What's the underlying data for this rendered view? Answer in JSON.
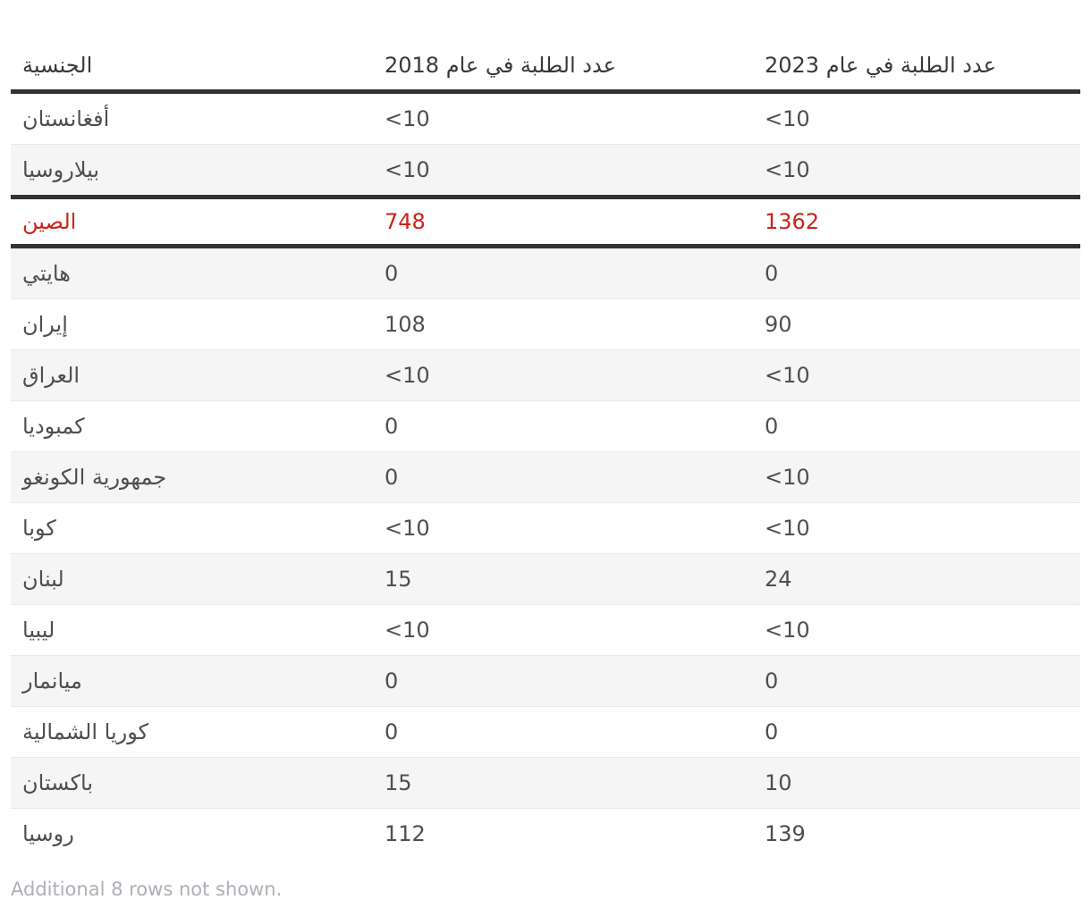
{
  "table": {
    "columns": [
      {
        "key": "nationality",
        "label": "الجنسية"
      },
      {
        "key": "y2018",
        "label": "عدد الطلبة في عام 2018"
      },
      {
        "key": "y2023",
        "label": "عدد الطلبة في عام 2023"
      }
    ],
    "rows": [
      {
        "nationality": "أفغانستان",
        "y2018": "<10",
        "y2023": "<10",
        "highlight": false
      },
      {
        "nationality": "بيلاروسيا",
        "y2018": "<10",
        "y2023": "<10",
        "highlight": false
      },
      {
        "nationality": "الصين",
        "y2018": "748",
        "y2023": "1362",
        "highlight": true
      },
      {
        "nationality": "هايتي",
        "y2018": "0",
        "y2023": "0",
        "highlight": false
      },
      {
        "nationality": "إيران",
        "y2018": "108",
        "y2023": "90",
        "highlight": false
      },
      {
        "nationality": "العراق",
        "y2018": "<10",
        "y2023": "<10",
        "highlight": false
      },
      {
        "nationality": "كمبوديا",
        "y2018": "0",
        "y2023": "0",
        "highlight": false
      },
      {
        "nationality": "جمهورية الكونغو",
        "y2018": "0",
        "y2023": "<10",
        "highlight": false
      },
      {
        "nationality": "كوبا",
        "y2018": "<10",
        "y2023": "<10",
        "highlight": false
      },
      {
        "nationality": "لبنان",
        "y2018": "15",
        "y2023": "24",
        "highlight": false
      },
      {
        "nationality": "ليبيا",
        "y2018": "<10",
        "y2023": "<10",
        "highlight": false
      },
      {
        "nationality": "ميانمار",
        "y2018": "0",
        "y2023": "0",
        "highlight": false
      },
      {
        "nationality": "كوريا الشمالية",
        "y2018": "0",
        "y2023": "0",
        "highlight": false
      },
      {
        "nationality": "باكستان",
        "y2018": "15",
        "y2023": "10",
        "highlight": false
      },
      {
        "nationality": "روسيا",
        "y2018": "112",
        "y2023": "139",
        "highlight": false
      }
    ],
    "footer_note": "Additional 8 rows not shown."
  },
  "colors": {
    "highlight_text": "#cc231a",
    "heavy_border": "#323232",
    "row_alt_bg": "#f5f5f5",
    "body_text": "#4e4e4e",
    "header_text": "#383838",
    "footer_text": "#adb0b6"
  }
}
